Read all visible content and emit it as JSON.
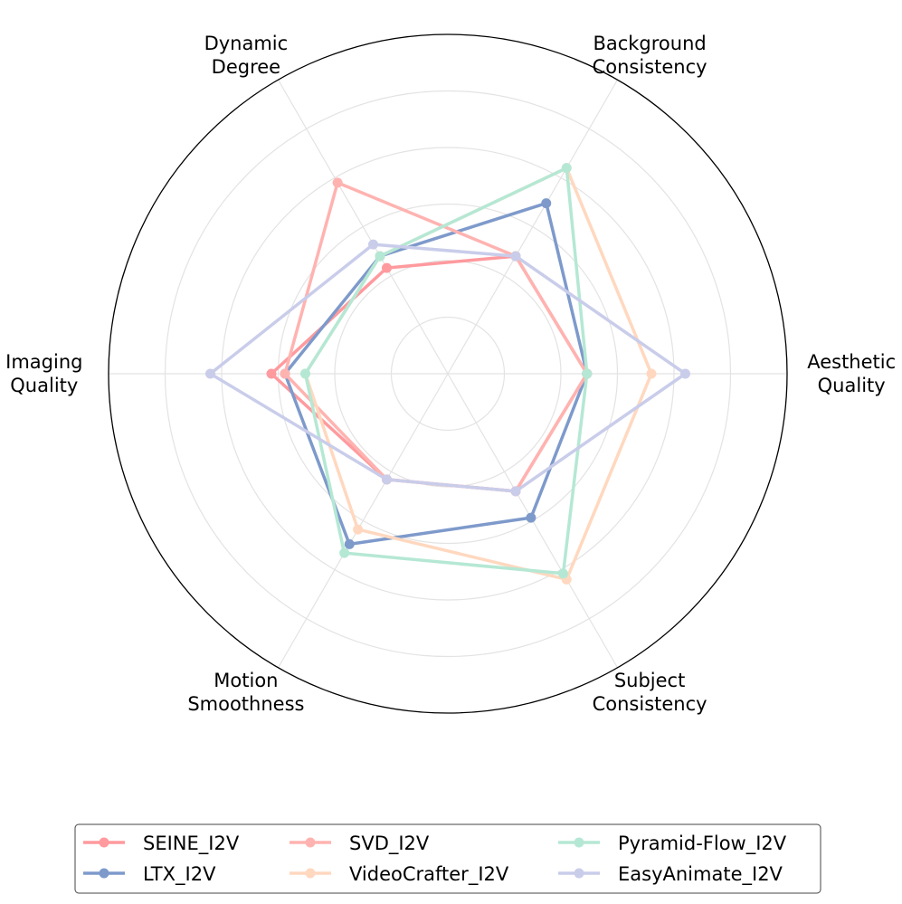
{
  "chart_data": {
    "type": "radar",
    "title": "",
    "axes": [
      {
        "label_lines": [
          "Aesthetic",
          "Quality"
        ]
      },
      {
        "label_lines": [
          "Background",
          "Consistency"
        ]
      },
      {
        "label_lines": [
          "Dynamic",
          "Degree"
        ]
      },
      {
        "label_lines": [
          "Imaging",
          "Quality"
        ]
      },
      {
        "label_lines": [
          "Motion",
          "Smoothness"
        ]
      },
      {
        "label_lines": [
          "Subject",
          "Consistency"
        ]
      }
    ],
    "rlim": [
      0,
      1
    ],
    "grid": true,
    "legend_position": "bottom",
    "series": [
      {
        "name": "SEINE_I2V",
        "color": "#ff9a9e",
        "values": [
          0.41,
          0.4,
          0.36,
          0.52,
          0.36,
          0.4
        ]
      },
      {
        "name": "LTX_I2V",
        "color": "#7e9acb",
        "values": [
          0.41,
          0.58,
          0.4,
          0.48,
          0.58,
          0.49
        ]
      },
      {
        "name": "SVD_I2V",
        "color": "#ffb3b0",
        "values": [
          0.41,
          0.4,
          0.65,
          0.48,
          0.36,
          0.4
        ]
      },
      {
        "name": "VideoCrafter_I2V",
        "color": "#ffd8bf",
        "values": [
          0.6,
          0.7,
          0.4,
          0.42,
          0.53,
          0.7
        ]
      },
      {
        "name": "Pyramid-Flow_I2V",
        "color": "#b5e8d4",
        "values": [
          0.41,
          0.7,
          0.4,
          0.42,
          0.61,
          0.68
        ]
      },
      {
        "name": "EasyAnimate_I2V",
        "color": "#c9cdea",
        "values": [
          0.7,
          0.4,
          0.44,
          0.7,
          0.36,
          0.4
        ]
      }
    ]
  }
}
